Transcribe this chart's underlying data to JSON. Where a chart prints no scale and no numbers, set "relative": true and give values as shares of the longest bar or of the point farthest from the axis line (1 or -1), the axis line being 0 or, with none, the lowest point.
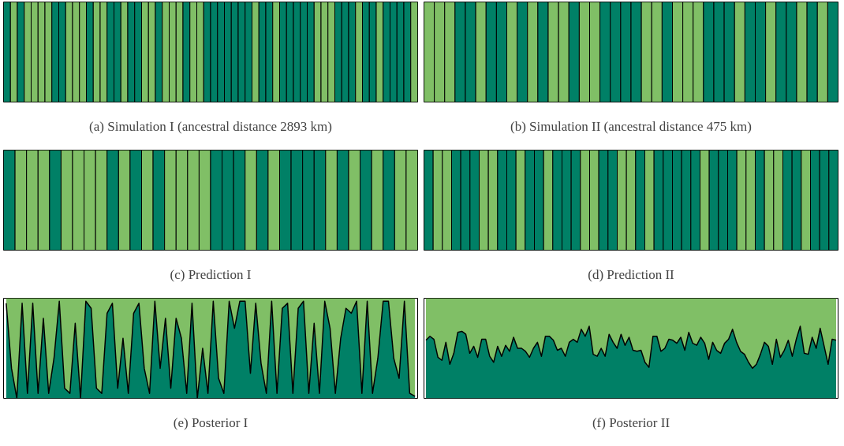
{
  "chart_data": [
    {
      "type": "bar",
      "relative": true,
      "title": "(a) Simulation I (ancestral distance 2893 km)",
      "categories": [
        null,
        null,
        null,
        null,
        null,
        null,
        null,
        null,
        null,
        null,
        null,
        null,
        null,
        null,
        null,
        null,
        null,
        null,
        null,
        null,
        null,
        null,
        null,
        null,
        null,
        null,
        null,
        null,
        null,
        null,
        null,
        null,
        null,
        null,
        null,
        null,
        null,
        null,
        null,
        null,
        null,
        null,
        null,
        null,
        null,
        null,
        null,
        null,
        null,
        null,
        null,
        null,
        null,
        null,
        null,
        null,
        null,
        null,
        null,
        null
      ],
      "values": [
        1,
        1,
        1,
        1,
        1,
        1,
        1,
        1,
        1,
        1,
        1,
        1,
        1,
        1,
        1,
        1,
        1,
        1,
        1,
        1,
        1,
        1,
        1,
        1,
        1,
        1,
        1,
        1,
        1,
        1,
        1,
        1,
        1,
        1,
        1,
        1,
        1,
        1,
        1,
        1,
        1,
        1,
        1,
        1,
        1,
        1,
        1,
        1,
        1,
        1,
        1,
        1,
        1,
        1,
        1,
        1,
        1,
        1,
        1,
        1
      ],
      "colors": [
        "#008066",
        "#80bf66",
        "#008066",
        "#80bf66",
        "#80bf66",
        "#80bf66",
        "#80bf66",
        "#008066",
        "#008066",
        "#80bf66",
        "#80bf66",
        "#80bf66",
        "#008066",
        "#80bf66",
        "#80bf66",
        "#008066",
        "#008066",
        "#80bf66",
        "#008066",
        "#008066",
        "#80bf66",
        "#80bf66",
        "#008066",
        "#80bf66",
        "#80bf66",
        "#80bf66",
        "#008066",
        "#80bf66",
        "#80bf66",
        "#008066",
        "#008066",
        "#008066",
        "#008066",
        "#008066",
        "#008066",
        "#008066",
        "#80bf66",
        "#008066",
        "#008066",
        "#80bf66",
        "#008066",
        "#008066",
        "#008066",
        "#008066",
        "#008066",
        "#80bf66",
        "#80bf66",
        "#80bf66",
        "#008066",
        "#008066",
        "#008066",
        "#80bf66",
        "#008066",
        "#008066",
        "#80bf66",
        "#008066",
        "#008066",
        "#008066",
        "#008066",
        "#80bf66"
      ]
    },
    {
      "type": "bar",
      "relative": true,
      "title": "(b) Simulation II (ancestral distance 475 km)",
      "categories": [
        null,
        null,
        null,
        null,
        null,
        null,
        null,
        null,
        null,
        null,
        null,
        null,
        null,
        null,
        null,
        null,
        null,
        null,
        null,
        null,
        null,
        null,
        null,
        null,
        null,
        null,
        null,
        null,
        null,
        null,
        null,
        null,
        null,
        null,
        null,
        null,
        null,
        null,
        null,
        null
      ],
      "values": [
        1,
        1,
        1,
        1,
        1,
        1,
        1,
        1,
        1,
        1,
        1,
        1,
        1,
        1,
        1,
        1,
        1,
        1,
        1,
        1,
        1,
        1,
        1,
        1,
        1,
        1,
        1,
        1,
        1,
        1,
        1,
        1,
        1,
        1,
        1,
        1,
        1,
        1,
        1,
        1
      ],
      "colors": [
        "#80bf66",
        "#80bf66",
        "#80bf66",
        "#008066",
        "#008066",
        "#80bf66",
        "#008066",
        "#008066",
        "#80bf66",
        "#008066",
        "#80bf66",
        "#008066",
        "#80bf66",
        "#80bf66",
        "#008066",
        "#80bf66",
        "#80bf66",
        "#008066",
        "#008066",
        "#008066",
        "#008066",
        "#80bf66",
        "#80bf66",
        "#008066",
        "#80bf66",
        "#80bf66",
        "#80bf66",
        "#008066",
        "#008066",
        "#008066",
        "#80bf66",
        "#008066",
        "#008066",
        "#80bf66",
        "#008066",
        "#008066",
        "#80bf66",
        "#008066",
        "#80bf66",
        "#008066"
      ]
    },
    {
      "type": "bar",
      "relative": true,
      "title": "(c) Prediction I",
      "categories": [
        null,
        null,
        null,
        null,
        null,
        null,
        null,
        null,
        null,
        null,
        null,
        null,
        null,
        null,
        null,
        null,
        null,
        null,
        null,
        null,
        null,
        null,
        null,
        null,
        null,
        null,
        null,
        null,
        null,
        null,
        null,
        null,
        null,
        null,
        null,
        null
      ],
      "values": [
        1,
        1,
        1,
        1,
        1,
        1,
        1,
        1,
        1,
        1,
        1,
        1,
        1,
        1,
        1,
        1,
        1,
        1,
        1,
        1,
        1,
        1,
        1,
        1,
        1,
        1,
        1,
        1,
        1,
        1,
        1,
        1,
        1,
        1,
        1,
        1
      ],
      "colors": [
        "#008066",
        "#80bf66",
        "#80bf66",
        "#80bf66",
        "#008066",
        "#80bf66",
        "#80bf66",
        "#80bf66",
        "#80bf66",
        "#008066",
        "#80bf66",
        "#008066",
        "#80bf66",
        "#008066",
        "#80bf66",
        "#80bf66",
        "#80bf66",
        "#80bf66",
        "#008066",
        "#008066",
        "#008066",
        "#80bf66",
        "#008066",
        "#80bf66",
        "#008066",
        "#008066",
        "#008066",
        "#008066",
        "#80bf66",
        "#008066",
        "#80bf66",
        "#008066",
        "#80bf66",
        "#008066",
        "#80bf66",
        "#80bf66"
      ]
    },
    {
      "type": "bar",
      "relative": true,
      "title": "(d) Prediction II",
      "categories": [
        null,
        null,
        null,
        null,
        null,
        null,
        null,
        null,
        null,
        null,
        null,
        null,
        null,
        null,
        null,
        null,
        null,
        null,
        null,
        null,
        null,
        null,
        null,
        null,
        null,
        null,
        null,
        null,
        null,
        null,
        null,
        null,
        null,
        null,
        null,
        null,
        null,
        null,
        null,
        null,
        null,
        null,
        null,
        null,
        null
      ],
      "values": [
        1,
        1,
        1,
        1,
        1,
        1,
        1,
        1,
        1,
        1,
        1,
        1,
        1,
        1,
        1,
        1,
        1,
        1,
        1,
        1,
        1,
        1,
        1,
        1,
        1,
        1,
        1,
        1,
        1,
        1,
        1,
        1,
        1,
        1,
        1,
        1,
        1,
        1,
        1,
        1,
        1,
        1,
        1,
        1,
        1
      ],
      "colors": [
        "#008066",
        "#80bf66",
        "#80bf66",
        "#008066",
        "#008066",
        "#008066",
        "#80bf66",
        "#80bf66",
        "#008066",
        "#008066",
        "#80bf66",
        "#008066",
        "#008066",
        "#80bf66",
        "#008066",
        "#008066",
        "#008066",
        "#80bf66",
        "#80bf66",
        "#008066",
        "#008066",
        "#80bf66",
        "#80bf66",
        "#008066",
        "#80bf66",
        "#008066",
        "#008066",
        "#008066",
        "#008066",
        "#008066",
        "#80bf66",
        "#008066",
        "#008066",
        "#008066",
        "#80bf66",
        "#80bf66",
        "#008066",
        "#80bf66",
        "#80bf66",
        "#008066",
        "#008066",
        "#80bf66",
        "#008066",
        "#008066",
        "#008066"
      ]
    },
    {
      "type": "area",
      "relative": true,
      "stacked": true,
      "title": "(e) Posterior I",
      "categories": [
        null,
        null,
        null,
        null,
        null,
        null,
        null,
        null,
        null,
        null,
        null,
        null,
        null,
        null,
        null,
        null,
        null,
        null,
        null,
        null,
        null,
        null,
        null,
        null,
        null,
        null,
        null,
        null,
        null,
        null,
        null,
        null,
        null,
        null,
        null,
        null,
        null,
        null,
        null,
        null,
        null,
        null,
        null,
        null,
        null,
        null,
        null,
        null,
        null,
        null,
        null,
        null,
        null,
        null,
        null,
        null,
        null,
        null,
        null,
        null,
        null,
        null,
        null,
        null,
        null,
        null,
        null,
        null,
        null,
        null,
        null,
        null,
        null,
        null,
        null,
        null,
        null,
        null
      ],
      "series": [
        {
          "color": "#008066",
          "values": [
            0.95,
            0.3,
            0.0,
            0.95,
            0.05,
            0.95,
            0.05,
            0.8,
            0.05,
            0.4,
            0.97,
            0.1,
            0.05,
            0.75,
            0.0,
            0.97,
            0.9,
            0.1,
            0.05,
            0.85,
            0.95,
            0.1,
            0.6,
            0.05,
            0.85,
            0.95,
            0.3,
            0.05,
            0.97,
            0.3,
            0.8,
            0.1,
            0.8,
            0.6,
            0.05,
            0.95,
            0.0,
            0.5,
            0.05,
            0.97,
            0.2,
            0.05,
            0.97,
            0.7,
            0.97,
            0.97,
            0.25,
            0.95,
            0.35,
            0.05,
            0.97,
            0.05,
            0.9,
            0.95,
            0.05,
            0.9,
            0.97,
            0.05,
            0.75,
            0.05,
            0.97,
            0.7,
            0.05,
            0.6,
            0.9,
            0.85,
            0.97,
            0.05,
            0.97,
            0.05,
            0.4,
            0.97,
            0.97,
            0.4,
            0.2,
            0.97,
            0.05,
            0.02
          ]
        },
        {
          "color": "#80bf66",
          "values": [
            0.05,
            0.7,
            1.0,
            0.05,
            0.95,
            0.05,
            0.95,
            0.2,
            0.95,
            0.6,
            0.03,
            0.9,
            0.95,
            0.25,
            1.0,
            0.03,
            0.1,
            0.9,
            0.95,
            0.15,
            0.05,
            0.9,
            0.4,
            0.95,
            0.15,
            0.05,
            0.7,
            0.95,
            0.03,
            0.7,
            0.2,
            0.9,
            0.2,
            0.4,
            0.95,
            0.05,
            1.0,
            0.5,
            0.95,
            0.03,
            0.8,
            0.95,
            0.03,
            0.3,
            0.03,
            0.03,
            0.75,
            0.05,
            0.65,
            0.95,
            0.03,
            0.95,
            0.1,
            0.05,
            0.95,
            0.1,
            0.03,
            0.95,
            0.25,
            0.95,
            0.03,
            0.3,
            0.95,
            0.4,
            0.1,
            0.15,
            0.03,
            0.95,
            0.03,
            0.95,
            0.6,
            0.03,
            0.03,
            0.6,
            0.8,
            0.03,
            0.95,
            0.98
          ]
        }
      ]
    },
    {
      "type": "area",
      "relative": true,
      "stacked": true,
      "title": "(f) Posterior II",
      "categories": [
        null,
        null,
        null,
        null,
        null,
        null,
        null,
        null,
        null,
        null,
        null,
        null,
        null,
        null,
        null,
        null,
        null,
        null,
        null,
        null,
        null,
        null,
        null,
        null,
        null,
        null,
        null,
        null,
        null,
        null,
        null,
        null,
        null,
        null,
        null,
        null,
        null,
        null,
        null,
        null,
        null,
        null,
        null,
        null,
        null,
        null,
        null,
        null,
        null,
        null,
        null,
        null,
        null,
        null,
        null,
        null,
        null,
        null,
        null,
        null,
        null,
        null,
        null,
        null,
        null,
        null,
        null,
        null,
        null,
        null,
        null,
        null,
        null,
        null,
        null,
        null,
        null,
        null,
        null,
        null,
        null,
        null,
        null,
        null,
        null,
        null,
        null,
        null,
        null,
        null,
        null,
        null,
        null,
        null,
        null,
        null,
        null,
        null,
        null,
        null,
        null,
        null,
        null,
        null
      ],
      "series": [
        {
          "color": "#008066",
          "values": [
            0.58,
            0.62,
            0.59,
            0.41,
            0.38,
            0.56,
            0.34,
            0.45,
            0.66,
            0.67,
            0.64,
            0.45,
            0.52,
            0.41,
            0.59,
            0.59,
            0.42,
            0.36,
            0.52,
            0.42,
            0.53,
            0.47,
            0.61,
            0.5,
            0.5,
            0.47,
            0.41,
            0.5,
            0.56,
            0.42,
            0.62,
            0.62,
            0.58,
            0.48,
            0.5,
            0.42,
            0.56,
            0.59,
            0.56,
            0.69,
            0.62,
            0.72,
            0.44,
            0.42,
            0.5,
            0.42,
            0.64,
            0.56,
            0.5,
            0.64,
            0.53,
            0.61,
            0.48,
            0.47,
            0.48,
            0.36,
            0.31,
            0.62,
            0.62,
            0.47,
            0.5,
            0.59,
            0.58,
            0.55,
            0.61,
            0.48,
            0.66,
            0.55,
            0.53,
            0.61,
            0.55,
            0.39,
            0.56,
            0.48,
            0.45,
            0.55,
            0.59,
            0.69,
            0.56,
            0.47,
            0.44,
            0.36,
            0.3,
            0.34,
            0.44,
            0.56,
            0.52,
            0.34,
            0.59,
            0.41,
            0.48,
            0.58,
            0.42,
            0.59,
            0.72,
            0.45,
            0.44,
            0.61,
            0.5,
            0.7,
            0.52,
            0.34,
            0.59,
            0.58
          ]
        },
        {
          "color": "#80bf66",
          "values": [
            0.42,
            0.38,
            0.41,
            0.59,
            0.62,
            0.44,
            0.66,
            0.55,
            0.34,
            0.33,
            0.36,
            0.55,
            0.48,
            0.59,
            0.41,
            0.41,
            0.58,
            0.64,
            0.48,
            0.58,
            0.47,
            0.53,
            0.39,
            0.5,
            0.5,
            0.53,
            0.59,
            0.5,
            0.44,
            0.58,
            0.38,
            0.38,
            0.42,
            0.52,
            0.5,
            0.58,
            0.44,
            0.41,
            0.44,
            0.31,
            0.38,
            0.28,
            0.56,
            0.58,
            0.5,
            0.58,
            0.36,
            0.44,
            0.5,
            0.36,
            0.47,
            0.39,
            0.52,
            0.53,
            0.52,
            0.64,
            0.69,
            0.38,
            0.38,
            0.53,
            0.5,
            0.41,
            0.42,
            0.45,
            0.39,
            0.52,
            0.34,
            0.45,
            0.47,
            0.39,
            0.45,
            0.61,
            0.44,
            0.52,
            0.55,
            0.45,
            0.41,
            0.31,
            0.44,
            0.53,
            0.56,
            0.64,
            0.7,
            0.66,
            0.56,
            0.44,
            0.48,
            0.66,
            0.41,
            0.59,
            0.52,
            0.42,
            0.58,
            0.41,
            0.28,
            0.55,
            0.56,
            0.39,
            0.5,
            0.3,
            0.48,
            0.66,
            0.41,
            0.42
          ]
        }
      ]
    }
  ]
}
